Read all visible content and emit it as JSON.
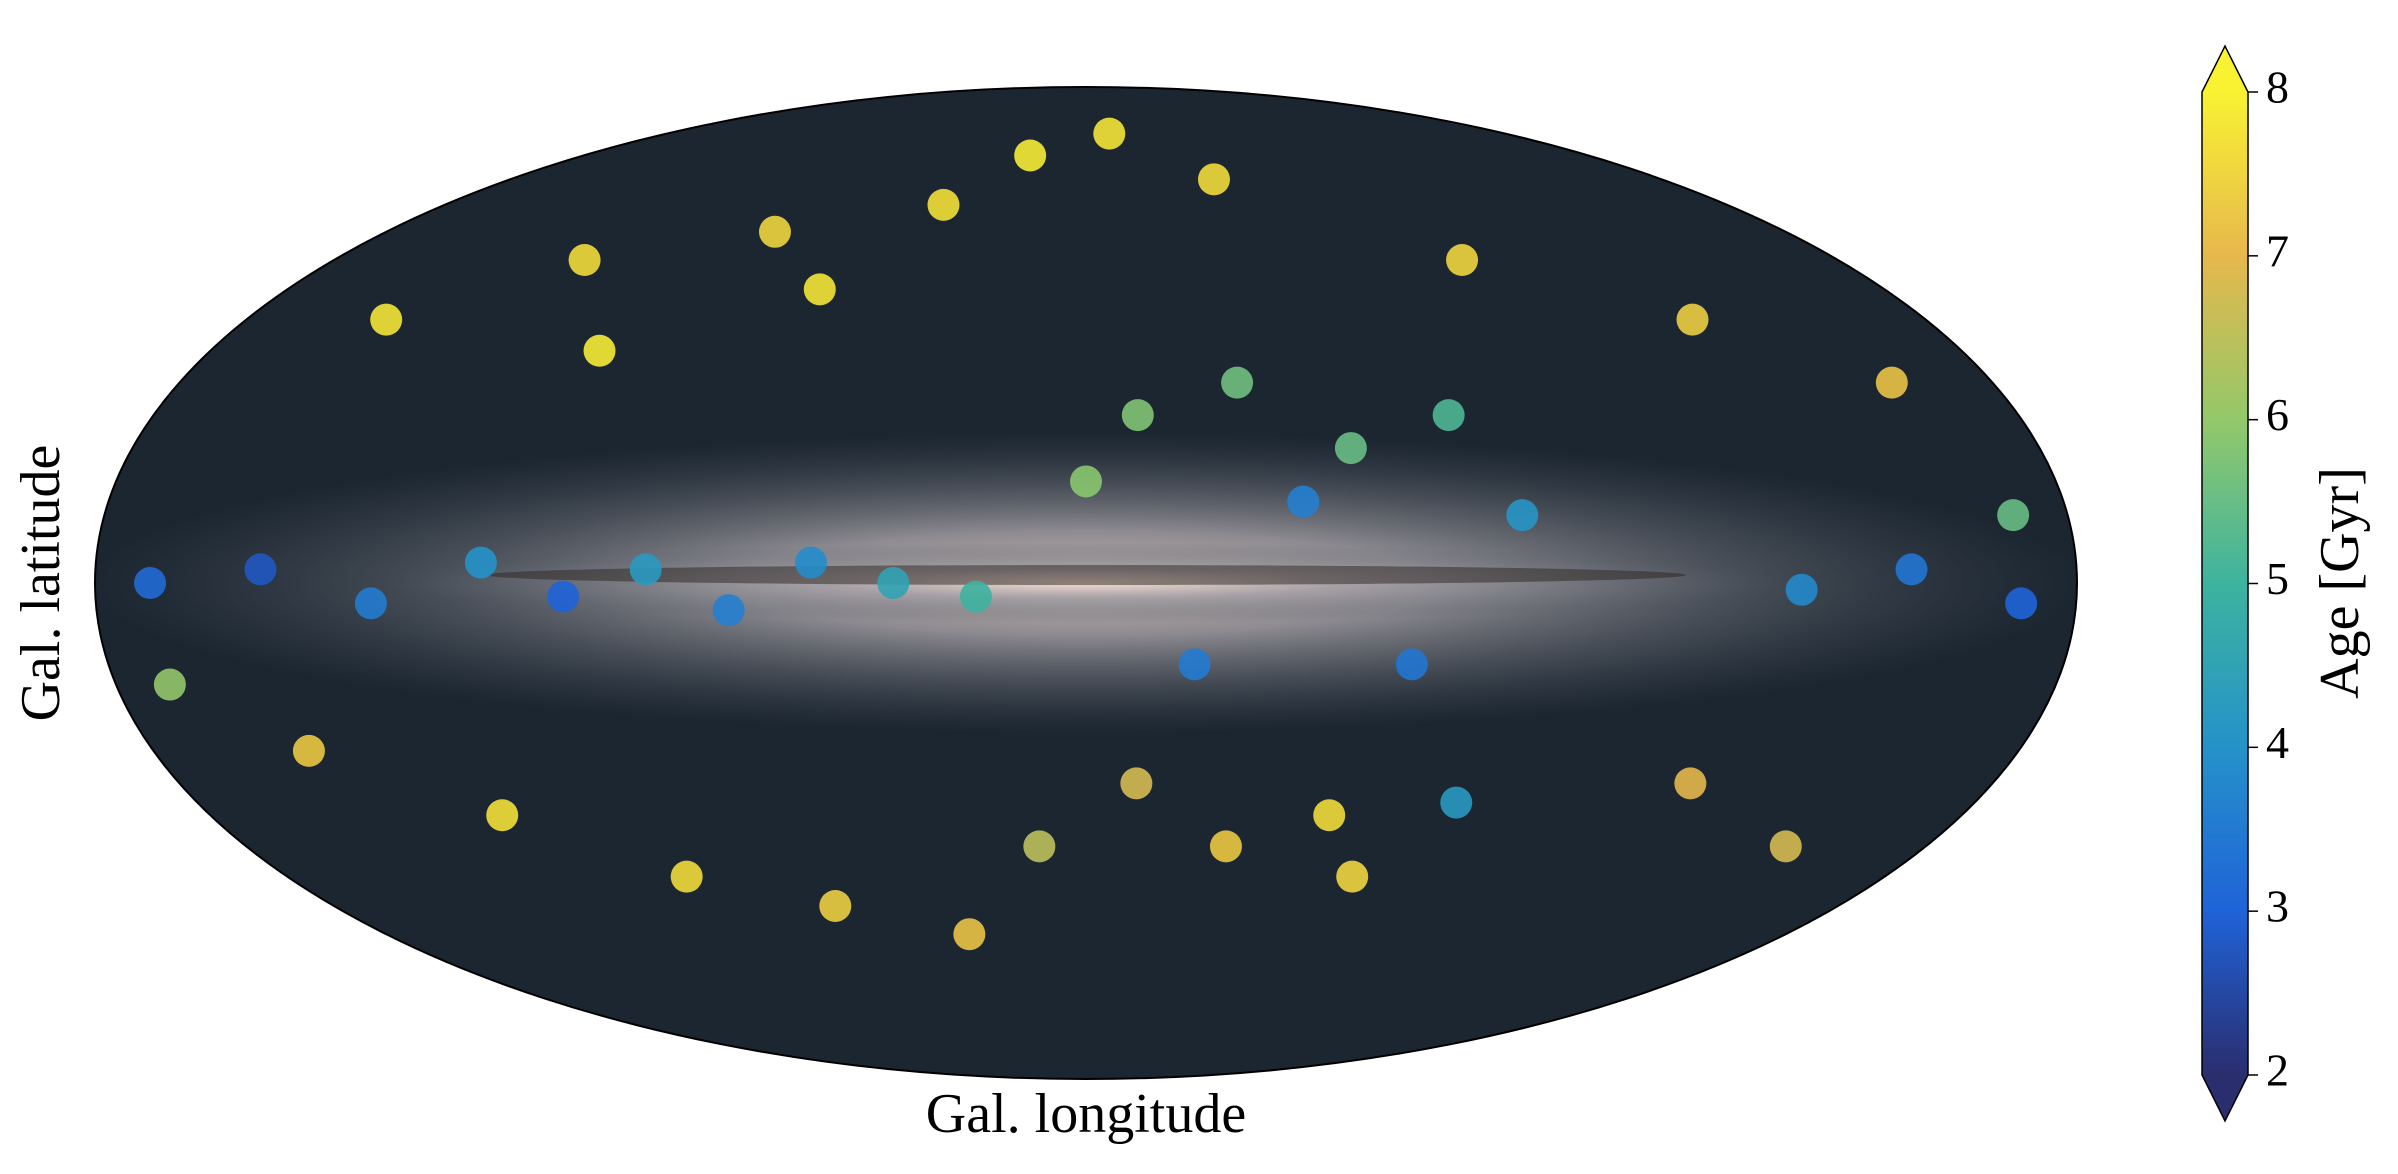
{
  "chart_data": {
    "type": "scatter",
    "projection": "mollweide",
    "xlabel": "Gal. longitude",
    "ylabel": "Gal. latitude",
    "xlim": [
      180,
      -180
    ],
    "ylim": [
      -90,
      90
    ],
    "x": [
      170,
      150,
      130,
      110,
      95,
      80,
      65,
      50,
      35,
      20,
      150,
      120,
      100,
      80,
      60,
      40,
      20,
      -10,
      -40,
      -90,
      -130,
      -160,
      -170,
      -170,
      -150,
      -130,
      -10,
      -30,
      -50,
      -70,
      -40,
      -80,
      0,
      -10,
      -30,
      -50,
      -75,
      -60,
      10,
      30,
      60,
      90,
      120,
      150,
      170,
      -120,
      -150,
      -20,
      -60
    ],
    "y": [
      0,
      2,
      -3,
      3,
      -2,
      2,
      -4,
      3,
      0,
      -2,
      40,
      50,
      35,
      55,
      45,
      60,
      70,
      75,
      65,
      50,
      40,
      30,
      10,
      -3,
      2,
      -1,
      25,
      30,
      20,
      25,
      12,
      10,
      15,
      -30,
      -40,
      -35,
      -33,
      -45,
      -40,
      -55,
      -50,
      -45,
      -35,
      -25,
      -15,
      -30,
      -40,
      -12,
      -12
    ],
    "color_values": [
      3.2,
      2.8,
      3.5,
      4.0,
      3.0,
      4.2,
      3.6,
      3.9,
      4.5,
      5.0,
      7.8,
      7.6,
      7.9,
      7.5,
      7.8,
      7.7,
      7.9,
      7.8,
      7.6,
      7.5,
      7.4,
      7.2,
      5.5,
      3.0,
      3.4,
      3.8,
      5.8,
      5.6,
      5.5,
      5.2,
      3.6,
      4.1,
      5.9,
      6.8,
      7.3,
      7.6,
      4.2,
      7.5,
      6.5,
      7.2,
      7.4,
      7.6,
      7.7,
      7.3,
      6.0,
      7.0,
      6.8,
      3.5,
      3.4
    ],
    "colorbar": {
      "label": "Age [Gyr]",
      "clim": [
        2,
        8
      ],
      "ticks": [
        2,
        3,
        4,
        5,
        6,
        7,
        8
      ],
      "extend": "both",
      "colormap": [
        "#2a2e6e",
        "#1f63d8",
        "#2592c9",
        "#3db39f",
        "#93c86a",
        "#e6b84c",
        "#f8f232"
      ]
    }
  }
}
